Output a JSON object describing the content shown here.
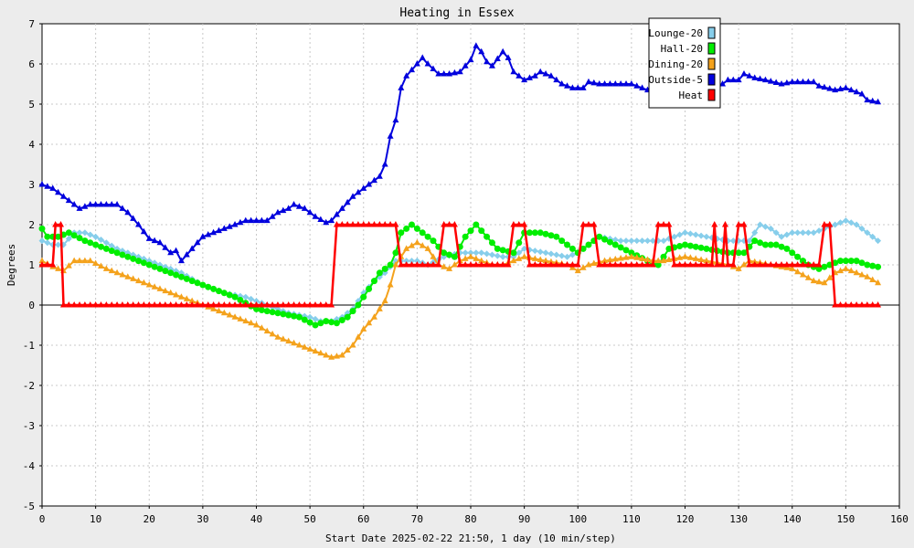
{
  "chart_data": {
    "type": "line",
    "title": "Heating in Essex",
    "xlabel": "Start Date 2025-02-22 21:50, 1 day (10 min/step)",
    "ylabel": "Degrees",
    "xlim": [
      0,
      160
    ],
    "ylim": [
      -5,
      7
    ],
    "xticks": [
      0,
      10,
      20,
      30,
      40,
      50,
      60,
      70,
      80,
      90,
      100,
      110,
      120,
      130,
      140,
      150,
      160
    ],
    "yticks": [
      -5,
      -4,
      -3,
      -2,
      -1,
      0,
      1,
      2,
      3,
      4,
      5,
      6,
      7
    ],
    "grid": true,
    "legend_position": "top-right",
    "series": [
      {
        "name": "Lounge-20",
        "color": "#87ceeb",
        "marker": "diamond",
        "points": [
          [
            0,
            1.6
          ],
          [
            2,
            1.5
          ],
          [
            4,
            1.5
          ],
          [
            6,
            1.8
          ],
          [
            8,
            1.8
          ],
          [
            10,
            1.7
          ],
          [
            14,
            1.4
          ],
          [
            18,
            1.2
          ],
          [
            22,
            1.0
          ],
          [
            26,
            0.8
          ],
          [
            30,
            0.5
          ],
          [
            34,
            0.3
          ],
          [
            38,
            0.2
          ],
          [
            42,
            0.0
          ],
          [
            46,
            -0.2
          ],
          [
            50,
            -0.3
          ],
          [
            52,
            -0.4
          ],
          [
            54,
            -0.4
          ],
          [
            56,
            -0.3
          ],
          [
            58,
            -0.1
          ],
          [
            60,
            0.3
          ],
          [
            62,
            0.6
          ],
          [
            64,
            0.8
          ],
          [
            66,
            1.1
          ],
          [
            68,
            1.1
          ],
          [
            70,
            1.1
          ],
          [
            72,
            1.0
          ],
          [
            75,
            1.2
          ],
          [
            78,
            1.3
          ],
          [
            82,
            1.3
          ],
          [
            86,
            1.2
          ],
          [
            88,
            1.2
          ],
          [
            90,
            1.4
          ],
          [
            94,
            1.3
          ],
          [
            98,
            1.2
          ],
          [
            100,
            1.3
          ],
          [
            104,
            1.7
          ],
          [
            108,
            1.6
          ],
          [
            112,
            1.6
          ],
          [
            116,
            1.6
          ],
          [
            120,
            1.8
          ],
          [
            124,
            1.7
          ],
          [
            128,
            1.6
          ],
          [
            130,
            1.6
          ],
          [
            132,
            1.6
          ],
          [
            134,
            2.0
          ],
          [
            136,
            1.9
          ],
          [
            138,
            1.7
          ],
          [
            140,
            1.8
          ],
          [
            144,
            1.8
          ],
          [
            146,
            1.9
          ],
          [
            148,
            2.0
          ],
          [
            150,
            2.1
          ],
          [
            152,
            2.0
          ],
          [
            154,
            1.8
          ],
          [
            156,
            1.6
          ]
        ]
      },
      {
        "name": "Hall-20",
        "color": "#00ee00",
        "marker": "circle",
        "points": [
          [
            0,
            1.9
          ],
          [
            1,
            1.7
          ],
          [
            3,
            1.7
          ],
          [
            5,
            1.8
          ],
          [
            8,
            1.6
          ],
          [
            12,
            1.4
          ],
          [
            16,
            1.2
          ],
          [
            20,
            1.0
          ],
          [
            24,
            0.8
          ],
          [
            28,
            0.6
          ],
          [
            32,
            0.4
          ],
          [
            36,
            0.2
          ],
          [
            40,
            -0.1
          ],
          [
            44,
            -0.2
          ],
          [
            48,
            -0.3
          ],
          [
            51,
            -0.5
          ],
          [
            53,
            -0.4
          ],
          [
            55,
            -0.45
          ],
          [
            57,
            -0.3
          ],
          [
            59,
            0.0
          ],
          [
            61,
            0.4
          ],
          [
            63,
            0.8
          ],
          [
            65,
            1.0
          ],
          [
            66,
            1.3
          ],
          [
            67,
            1.8
          ],
          [
            69,
            2.0
          ],
          [
            71,
            1.8
          ],
          [
            73,
            1.6
          ],
          [
            75,
            1.3
          ],
          [
            77,
            1.2
          ],
          [
            79,
            1.7
          ],
          [
            81,
            2.0
          ],
          [
            83,
            1.7
          ],
          [
            85,
            1.4
          ],
          [
            88,
            1.3
          ],
          [
            90,
            1.8
          ],
          [
            93,
            1.8
          ],
          [
            96,
            1.7
          ],
          [
            98,
            1.5
          ],
          [
            100,
            1.3
          ],
          [
            102,
            1.5
          ],
          [
            104,
            1.7
          ],
          [
            107,
            1.5
          ],
          [
            110,
            1.3
          ],
          [
            113,
            1.1
          ],
          [
            115,
            1.0
          ],
          [
            117,
            1.4
          ],
          [
            120,
            1.5
          ],
          [
            124,
            1.4
          ],
          [
            128,
            1.3
          ],
          [
            131,
            1.3
          ],
          [
            133,
            1.6
          ],
          [
            135,
            1.5
          ],
          [
            137,
            1.5
          ],
          [
            139,
            1.4
          ],
          [
            141,
            1.2
          ],
          [
            143,
            1.0
          ],
          [
            145,
            0.9
          ],
          [
            147,
            1.0
          ],
          [
            149,
            1.1
          ],
          [
            152,
            1.1
          ],
          [
            154,
            1.0
          ],
          [
            156,
            0.95
          ]
        ]
      },
      {
        "name": "Dining-20",
        "color": "#f4a21c",
        "marker": "triangle",
        "points": [
          [
            0,
            1.1
          ],
          [
            2,
            0.95
          ],
          [
            4,
            0.85
          ],
          [
            6,
            1.1
          ],
          [
            9,
            1.1
          ],
          [
            12,
            0.9
          ],
          [
            16,
            0.7
          ],
          [
            20,
            0.5
          ],
          [
            24,
            0.3
          ],
          [
            28,
            0.1
          ],
          [
            32,
            -0.1
          ],
          [
            36,
            -0.3
          ],
          [
            40,
            -0.5
          ],
          [
            44,
            -0.8
          ],
          [
            48,
            -1.0
          ],
          [
            52,
            -1.2
          ],
          [
            54,
            -1.3
          ],
          [
            56,
            -1.25
          ],
          [
            58,
            -1.0
          ],
          [
            60,
            -0.6
          ],
          [
            62,
            -0.3
          ],
          [
            64,
            0.1
          ],
          [
            65,
            0.5
          ],
          [
            66,
            1.0
          ],
          [
            68,
            1.4
          ],
          [
            70,
            1.55
          ],
          [
            72,
            1.4
          ],
          [
            74,
            1.0
          ],
          [
            76,
            0.9
          ],
          [
            78,
            1.1
          ],
          [
            80,
            1.2
          ],
          [
            82,
            1.1
          ],
          [
            84,
            1.0
          ],
          [
            86,
            1.0
          ],
          [
            88,
            1.1
          ],
          [
            90,
            1.2
          ],
          [
            94,
            1.1
          ],
          [
            98,
            1.0
          ],
          [
            100,
            0.85
          ],
          [
            102,
            1.0
          ],
          [
            105,
            1.1
          ],
          [
            110,
            1.2
          ],
          [
            114,
            1.1
          ],
          [
            116,
            1.1
          ],
          [
            120,
            1.2
          ],
          [
            124,
            1.1
          ],
          [
            128,
            1.0
          ],
          [
            130,
            0.9
          ],
          [
            132,
            1.1
          ],
          [
            136,
            1.0
          ],
          [
            140,
            0.9
          ],
          [
            144,
            0.6
          ],
          [
            146,
            0.55
          ],
          [
            148,
            0.8
          ],
          [
            150,
            0.9
          ],
          [
            152,
            0.8
          ],
          [
            154,
            0.7
          ],
          [
            156,
            0.55
          ]
        ]
      },
      {
        "name": "Outside-5",
        "color": "#0000dd",
        "marker": "triangle",
        "points": [
          [
            0,
            3.0
          ],
          [
            2,
            2.9
          ],
          [
            4,
            2.7
          ],
          [
            6,
            2.5
          ],
          [
            7,
            2.4
          ],
          [
            9,
            2.5
          ],
          [
            12,
            2.5
          ],
          [
            14,
            2.5
          ],
          [
            16,
            2.3
          ],
          [
            18,
            2.0
          ],
          [
            20,
            1.65
          ],
          [
            22,
            1.55
          ],
          [
            24,
            1.3
          ],
          [
            25,
            1.35
          ],
          [
            26,
            1.1
          ],
          [
            28,
            1.4
          ],
          [
            30,
            1.7
          ],
          [
            32,
            1.8
          ],
          [
            34,
            1.9
          ],
          [
            36,
            2.0
          ],
          [
            38,
            2.1
          ],
          [
            40,
            2.1
          ],
          [
            42,
            2.1
          ],
          [
            44,
            2.3
          ],
          [
            46,
            2.4
          ],
          [
            47,
            2.5
          ],
          [
            49,
            2.4
          ],
          [
            51,
            2.2
          ],
          [
            53,
            2.05
          ],
          [
            54,
            2.1
          ],
          [
            56,
            2.4
          ],
          [
            58,
            2.7
          ],
          [
            60,
            2.9
          ],
          [
            62,
            3.1
          ],
          [
            63,
            3.2
          ],
          [
            64,
            3.5
          ],
          [
            65,
            4.2
          ],
          [
            66,
            4.6
          ],
          [
            67,
            5.4
          ],
          [
            68,
            5.7
          ],
          [
            70,
            6.0
          ],
          [
            71,
            6.15
          ],
          [
            72,
            6.0
          ],
          [
            74,
            5.75
          ],
          [
            76,
            5.75
          ],
          [
            78,
            5.8
          ],
          [
            80,
            6.1
          ],
          [
            81,
            6.45
          ],
          [
            82,
            6.3
          ],
          [
            83,
            6.05
          ],
          [
            84,
            5.95
          ],
          [
            86,
            6.3
          ],
          [
            87,
            6.15
          ],
          [
            88,
            5.8
          ],
          [
            89,
            5.7
          ],
          [
            90,
            5.6
          ],
          [
            92,
            5.7
          ],
          [
            93,
            5.8
          ],
          [
            95,
            5.7
          ],
          [
            97,
            5.5
          ],
          [
            99,
            5.4
          ],
          [
            101,
            5.4
          ],
          [
            102,
            5.55
          ],
          [
            104,
            5.5
          ],
          [
            108,
            5.5
          ],
          [
            110,
            5.5
          ],
          [
            112,
            5.4
          ],
          [
            114,
            5.3
          ],
          [
            115,
            5.2
          ],
          [
            116,
            5.3
          ],
          [
            118,
            5.4
          ],
          [
            120,
            5.3
          ],
          [
            122,
            5.2
          ],
          [
            124,
            5.3
          ],
          [
            126,
            5.4
          ],
          [
            128,
            5.6
          ],
          [
            130,
            5.6
          ],
          [
            131,
            5.75
          ],
          [
            133,
            5.65
          ],
          [
            135,
            5.6
          ],
          [
            138,
            5.5
          ],
          [
            140,
            5.55
          ],
          [
            144,
            5.55
          ],
          [
            145,
            5.45
          ],
          [
            148,
            5.35
          ],
          [
            150,
            5.4
          ],
          [
            151,
            5.35
          ],
          [
            153,
            5.25
          ],
          [
            154,
            5.1
          ],
          [
            156,
            5.05
          ]
        ]
      },
      {
        "name": "Heat",
        "color": "#ff0000",
        "marker": "triangle",
        "points": [
          [
            0,
            1
          ],
          [
            2,
            1
          ],
          [
            2.5,
            2
          ],
          [
            3.5,
            2
          ],
          [
            4,
            0
          ],
          [
            54,
            0
          ],
          [
            55,
            2
          ],
          [
            66,
            2
          ],
          [
            67,
            1
          ],
          [
            74,
            1
          ],
          [
            75,
            2
          ],
          [
            77,
            2
          ],
          [
            78,
            1
          ],
          [
            87,
            1
          ],
          [
            88,
            2
          ],
          [
            90,
            2
          ],
          [
            91,
            1
          ],
          [
            100,
            1
          ],
          [
            101,
            2
          ],
          [
            103,
            2
          ],
          [
            104,
            1
          ],
          [
            114,
            1
          ],
          [
            115,
            2
          ],
          [
            117,
            2
          ],
          [
            118,
            1
          ],
          [
            125,
            1
          ],
          [
            125.5,
            2
          ],
          [
            126,
            1
          ],
          [
            127,
            1
          ],
          [
            127.5,
            2
          ],
          [
            128,
            1
          ],
          [
            129,
            1
          ],
          [
            130,
            2
          ],
          [
            131,
            2
          ],
          [
            132,
            1
          ],
          [
            145,
            1
          ],
          [
            146,
            2
          ],
          [
            147,
            2
          ],
          [
            148,
            0
          ],
          [
            156,
            0
          ]
        ]
      }
    ]
  }
}
